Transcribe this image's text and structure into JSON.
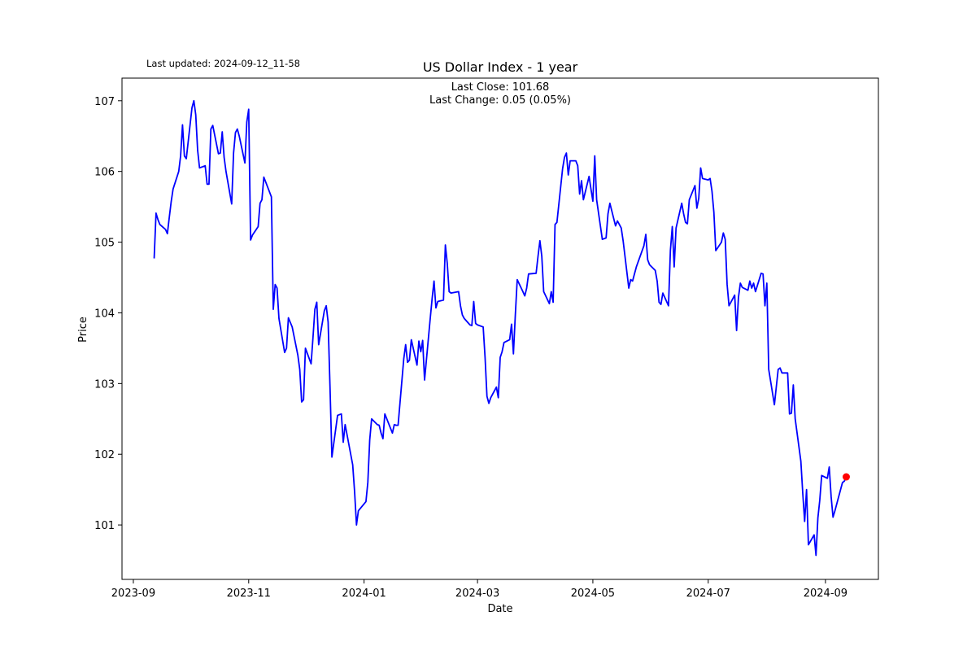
{
  "chart_data": {
    "type": "line",
    "title": "US Dollar Index - 1 year",
    "subtitle": "Last updated: 2024-09-12_11-58",
    "annotations": [
      "Last Close: 101.68",
      "Last Change: 0.05 (0.05%)"
    ],
    "x_label": "Date",
    "y_label": "Price",
    "color": "#0000ff",
    "last_point_color": "#ff0000",
    "xlim": [
      "2023-08-26",
      "2024-09-29"
    ],
    "xticks": [
      {
        "value": "2023-09-01",
        "label": "2023-09"
      },
      {
        "value": "2023-11-01",
        "label": "2023-11"
      },
      {
        "value": "2024-01-01",
        "label": "2024-01"
      },
      {
        "value": "2024-03-01",
        "label": "2024-03"
      },
      {
        "value": "2024-05-01",
        "label": "2024-05"
      },
      {
        "value": "2024-07-01",
        "label": "2024-07"
      },
      {
        "value": "2024-09-01",
        "label": "2024-09"
      }
    ],
    "ylim": [
      100.23,
      107.32
    ],
    "yticks": [
      101,
      102,
      103,
      104,
      105,
      106,
      107
    ],
    "x": [
      "2023-09-12",
      "2023-09-13",
      "2023-09-14",
      "2023-09-15",
      "2023-09-18",
      "2023-09-19",
      "2023-09-20",
      "2023-09-21",
      "2023-09-22",
      "2023-09-25",
      "2023-09-26",
      "2023-09-27",
      "2023-09-28",
      "2023-09-29",
      "2023-10-02",
      "2023-10-03",
      "2023-10-04",
      "2023-10-05",
      "2023-10-06",
      "2023-10-09",
      "2023-10-10",
      "2023-10-11",
      "2023-10-12",
      "2023-10-13",
      "2023-10-16",
      "2023-10-17",
      "2023-10-18",
      "2023-10-19",
      "2023-10-20",
      "2023-10-23",
      "2023-10-24",
      "2023-10-25",
      "2023-10-26",
      "2023-10-27",
      "2023-10-30",
      "2023-10-31",
      "2023-11-01",
      "2023-11-02",
      "2023-11-03",
      "2023-11-06",
      "2023-11-07",
      "2023-11-08",
      "2023-11-09",
      "2023-11-10",
      "2023-11-13",
      "2023-11-14",
      "2023-11-15",
      "2023-11-16",
      "2023-11-17",
      "2023-11-20",
      "2023-11-21",
      "2023-11-22",
      "2023-11-24",
      "2023-11-27",
      "2023-11-28",
      "2023-11-29",
      "2023-11-30",
      "2023-12-01",
      "2023-12-04",
      "2023-12-05",
      "2023-12-06",
      "2023-12-07",
      "2023-12-08",
      "2023-12-11",
      "2023-12-12",
      "2023-12-13",
      "2023-12-14",
      "2023-12-15",
      "2023-12-18",
      "2023-12-19",
      "2023-12-20",
      "2023-12-21",
      "2023-12-22",
      "2023-12-26",
      "2023-12-27",
      "2023-12-28",
      "2023-12-29",
      "2024-01-02",
      "2024-01-03",
      "2024-01-04",
      "2024-01-05",
      "2024-01-08",
      "2024-01-09",
      "2024-01-10",
      "2024-01-11",
      "2024-01-12",
      "2024-01-16",
      "2024-01-17",
      "2024-01-18",
      "2024-01-19",
      "2024-01-22",
      "2024-01-23",
      "2024-01-24",
      "2024-01-25",
      "2024-01-26",
      "2024-01-29",
      "2024-01-30",
      "2024-01-31",
      "2024-02-01",
      "2024-02-02",
      "2024-02-05",
      "2024-02-06",
      "2024-02-07",
      "2024-02-08",
      "2024-02-09",
      "2024-02-12",
      "2024-02-13",
      "2024-02-14",
      "2024-02-15",
      "2024-02-16",
      "2024-02-20",
      "2024-02-21",
      "2024-02-22",
      "2024-02-23",
      "2024-02-26",
      "2024-02-27",
      "2024-02-28",
      "2024-02-29",
      "2024-03-01",
      "2024-03-04",
      "2024-03-05",
      "2024-03-06",
      "2024-03-07",
      "2024-03-08",
      "2024-03-11",
      "2024-03-12",
      "2024-03-13",
      "2024-03-14",
      "2024-03-15",
      "2024-03-18",
      "2024-03-19",
      "2024-03-20",
      "2024-03-21",
      "2024-03-22",
      "2024-03-25",
      "2024-03-26",
      "2024-03-27",
      "2024-03-28",
      "2024-04-01",
      "2024-04-02",
      "2024-04-03",
      "2024-04-04",
      "2024-04-05",
      "2024-04-08",
      "2024-04-09",
      "2024-04-10",
      "2024-04-11",
      "2024-04-12",
      "2024-04-15",
      "2024-04-16",
      "2024-04-17",
      "2024-04-18",
      "2024-04-19",
      "2024-04-22",
      "2024-04-23",
      "2024-04-24",
      "2024-04-25",
      "2024-04-26",
      "2024-04-29",
      "2024-04-30",
      "2024-05-01",
      "2024-05-02",
      "2024-05-03",
      "2024-05-06",
      "2024-05-07",
      "2024-05-08",
      "2024-05-09",
      "2024-05-10",
      "2024-05-13",
      "2024-05-14",
      "2024-05-15",
      "2024-05-16",
      "2024-05-17",
      "2024-05-20",
      "2024-05-21",
      "2024-05-22",
      "2024-05-23",
      "2024-05-24",
      "2024-05-28",
      "2024-05-29",
      "2024-05-30",
      "2024-05-31",
      "2024-06-03",
      "2024-06-04",
      "2024-06-05",
      "2024-06-06",
      "2024-06-07",
      "2024-06-10",
      "2024-06-11",
      "2024-06-12",
      "2024-06-13",
      "2024-06-14",
      "2024-06-17",
      "2024-06-18",
      "2024-06-19",
      "2024-06-20",
      "2024-06-21",
      "2024-06-24",
      "2024-06-25",
      "2024-06-26",
      "2024-06-27",
      "2024-06-28",
      "2024-07-01",
      "2024-07-02",
      "2024-07-03",
      "2024-07-04",
      "2024-07-05",
      "2024-07-08",
      "2024-07-09",
      "2024-07-10",
      "2024-07-11",
      "2024-07-12",
      "2024-07-15",
      "2024-07-16",
      "2024-07-17",
      "2024-07-18",
      "2024-07-19",
      "2024-07-22",
      "2024-07-23",
      "2024-07-24",
      "2024-07-25",
      "2024-07-26",
      "2024-07-29",
      "2024-07-30",
      "2024-07-31",
      "2024-08-01",
      "2024-08-02",
      "2024-08-05",
      "2024-08-06",
      "2024-08-07",
      "2024-08-08",
      "2024-08-09",
      "2024-08-12",
      "2024-08-13",
      "2024-08-14",
      "2024-08-15",
      "2024-08-16",
      "2024-08-19",
      "2024-08-20",
      "2024-08-21",
      "2024-08-22",
      "2024-08-23",
      "2024-08-26",
      "2024-08-27",
      "2024-08-28",
      "2024-08-29",
      "2024-08-30",
      "2024-09-02",
      "2024-09-03",
      "2024-09-04",
      "2024-09-05",
      "2024-09-06",
      "2024-09-09",
      "2024-09-10",
      "2024-09-11",
      "2024-09-12"
    ],
    "values": [
      104.77,
      105.41,
      105.32,
      105.25,
      105.18,
      105.12,
      105.35,
      105.57,
      105.75,
      106.0,
      106.22,
      106.66,
      106.22,
      106.18,
      106.9,
      107.0,
      106.8,
      106.3,
      106.05,
      106.08,
      105.82,
      105.82,
      106.6,
      106.65,
      106.25,
      106.26,
      106.56,
      106.2,
      106.0,
      105.54,
      106.26,
      106.55,
      106.6,
      106.5,
      106.12,
      106.7,
      106.88,
      105.03,
      105.1,
      105.22,
      105.55,
      105.6,
      105.92,
      105.85,
      105.64,
      104.05,
      104.4,
      104.35,
      103.92,
      103.44,
      103.5,
      103.93,
      103.8,
      103.4,
      103.2,
      102.74,
      102.77,
      103.5,
      103.28,
      103.65,
      104.05,
      104.15,
      103.55,
      104.03,
      104.1,
      103.87,
      102.95,
      101.96,
      102.55,
      102.56,
      102.57,
      102.17,
      102.42,
      101.85,
      101.47,
      101.0,
      101.2,
      101.33,
      101.6,
      102.2,
      102.5,
      102.42,
      102.41,
      102.3,
      102.22,
      102.57,
      102.3,
      102.42,
      102.41,
      102.41,
      103.35,
      103.55,
      103.3,
      103.33,
      103.62,
      103.26,
      103.6,
      103.45,
      103.61,
      103.05,
      103.92,
      104.2,
      104.45,
      104.07,
      104.16,
      104.18,
      104.96,
      104.7,
      104.3,
      104.28,
      104.3,
      104.1,
      103.97,
      103.92,
      103.83,
      103.82,
      104.16,
      103.85,
      103.83,
      103.8,
      103.37,
      102.82,
      102.72,
      102.8,
      102.95,
      102.8,
      103.37,
      103.45,
      103.58,
      103.62,
      103.84,
      103.42,
      103.97,
      104.47,
      104.3,
      104.24,
      104.35,
      104.55,
      104.56,
      104.8,
      105.02,
      104.8,
      104.3,
      104.13,
      104.3,
      104.15,
      105.25,
      105.28,
      106.04,
      106.2,
      106.26,
      105.95,
      106.15,
      106.15,
      106.08,
      105.68,
      105.87,
      105.6,
      105.93,
      105.75,
      105.58,
      106.22,
      105.6,
      105.04,
      105.05,
      105.06,
      105.4,
      105.55,
      105.23,
      105.3,
      105.25,
      105.2,
      105.02,
      104.35,
      104.47,
      104.45,
      104.55,
      104.65,
      104.95,
      105.11,
      104.75,
      104.68,
      104.6,
      104.45,
      104.15,
      104.12,
      104.28,
      104.1,
      104.88,
      105.22,
      104.65,
      105.2,
      105.55,
      105.4,
      105.28,
      105.26,
      105.6,
      105.8,
      105.48,
      105.62,
      106.05,
      105.9,
      105.88,
      105.9,
      105.72,
      105.42,
      104.88,
      105.0,
      105.13,
      105.04,
      104.4,
      104.1,
      104.25,
      103.75,
      104.22,
      104.42,
      104.36,
      104.32,
      104.45,
      104.35,
      104.42,
      104.3,
      104.56,
      104.55,
      104.1,
      104.42,
      103.2,
      102.7,
      102.95,
      103.2,
      103.22,
      103.15,
      103.15,
      102.57,
      102.58,
      102.98,
      102.5,
      101.9,
      101.45,
      101.05,
      101.5,
      100.72,
      100.86,
      100.57,
      101.1,
      101.35,
      101.7,
      101.66,
      101.82,
      101.4,
      101.11,
      101.2,
      101.5,
      101.6,
      101.62,
      101.68
    ]
  }
}
